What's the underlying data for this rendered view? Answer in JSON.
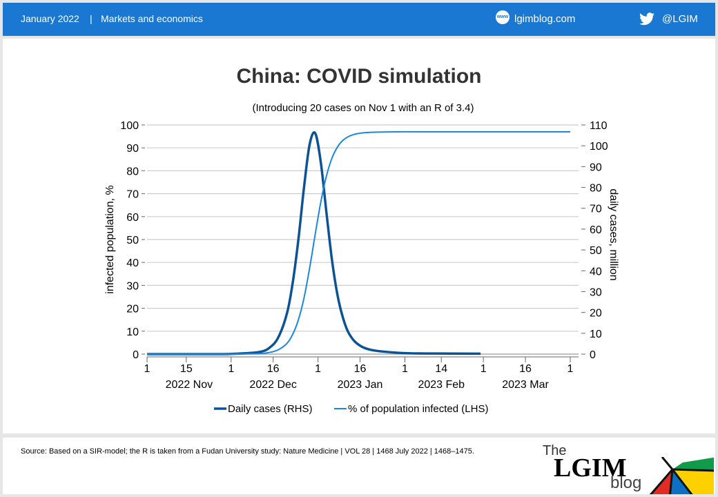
{
  "header": {
    "date": "January 2022",
    "separator": "|",
    "category": "Markets and economics",
    "site_icon": "www",
    "site": "lgimblog.com",
    "twitter_icon": "twitter-bird",
    "twitter": "@LGIM"
  },
  "footer": {
    "source": "Source: Based on a SIR-model; the R is taken from a Fudan University study: Nature Medicine | VOL 28 | 1468 July 2022 | 1468–1475.",
    "logo_text": "The LGIM blog"
  },
  "chart_data": {
    "type": "line",
    "title": "China: COVID simulation",
    "subtitle": "(Introducing 20 cases on Nov 1 with an R of 3.4)",
    "ylabel": "infected population, %",
    "y2label": "daily cases, million",
    "ylim": [
      0,
      100
    ],
    "y2lim": [
      0,
      110
    ],
    "yticks": [
      0,
      10,
      20,
      30,
      40,
      50,
      60,
      70,
      80,
      90,
      100
    ],
    "y2ticks": [
      0,
      10,
      20,
      30,
      40,
      50,
      60,
      70,
      80,
      90,
      100,
      110
    ],
    "xlim": [
      "2022-11-01",
      "2023-04-01"
    ],
    "xticks": [
      {
        "date": "2022-11-01",
        "label": "1"
      },
      {
        "date": "2022-11-15",
        "label": "15"
      },
      {
        "date": "2022-12-01",
        "label": "1"
      },
      {
        "date": "2022-12-16",
        "label": "16"
      },
      {
        "date": "2023-01-01",
        "label": "1"
      },
      {
        "date": "2023-01-16",
        "label": "16"
      },
      {
        "date": "2023-02-01",
        "label": "1"
      },
      {
        "date": "2023-02-14",
        "label": "14"
      },
      {
        "date": "2023-03-01",
        "label": "1"
      },
      {
        "date": "2023-03-16",
        "label": "16"
      },
      {
        "date": "2023-04-01",
        "label": "1"
      }
    ],
    "month_labels": [
      {
        "date": "2022-11-16",
        "label": "2022 Nov"
      },
      {
        "date": "2022-12-16",
        "label": "2022 Dec"
      },
      {
        "date": "2023-01-16",
        "label": "2023 Jan"
      },
      {
        "date": "2023-02-14",
        "label": "2023 Feb"
      },
      {
        "date": "2023-03-16",
        "label": "2023 Mar"
      }
    ],
    "grid": true,
    "legend": "bottom",
    "series": [
      {
        "name": "Daily cases (RHS)",
        "axis": "right",
        "color": "#0b5394",
        "x": [
          "2022-11-01",
          "2022-11-21",
          "2022-12-01",
          "2022-12-11",
          "2022-12-15",
          "2022-12-18",
          "2022-12-21",
          "2022-12-23",
          "2022-12-25",
          "2022-12-27",
          "2022-12-29",
          "2022-12-31",
          "2023-01-02",
          "2023-01-04",
          "2023-01-06",
          "2023-01-08",
          "2023-01-10",
          "2023-01-12",
          "2023-01-15",
          "2023-01-20",
          "2023-01-30",
          "2023-02-09",
          "2023-02-28"
        ],
        "y": [
          0,
          0,
          0.1,
          1,
          3.4,
          8.5,
          20,
          34.5,
          55,
          80,
          100.6,
          106,
          92,
          68,
          45,
          28,
          17,
          10,
          5,
          2,
          0.6,
          0.3,
          0.2
        ]
      },
      {
        "name": "% of population infected (LHS)",
        "axis": "left",
        "color": "#1a86e0",
        "x": [
          "2022-11-01",
          "2022-11-21",
          "2022-12-01",
          "2022-12-11",
          "2022-12-15",
          "2022-12-18",
          "2022-12-21",
          "2022-12-23",
          "2022-12-25",
          "2022-12-27",
          "2022-12-29",
          "2022-12-31",
          "2023-01-02",
          "2023-01-04",
          "2023-01-06",
          "2023-01-08",
          "2023-01-10",
          "2023-01-12",
          "2023-01-15",
          "2023-01-20",
          "2023-01-30",
          "2023-02-09",
          "2023-04-01"
        ],
        "y": [
          0,
          0,
          0.01,
          0.23,
          0.8,
          2,
          4.8,
          8.7,
          15,
          24.5,
          37.5,
          52.3,
          66.4,
          77.7,
          85.6,
          90.5,
          93.4,
          95,
          96.2,
          96.8,
          97,
          97,
          97
        ]
      }
    ]
  }
}
